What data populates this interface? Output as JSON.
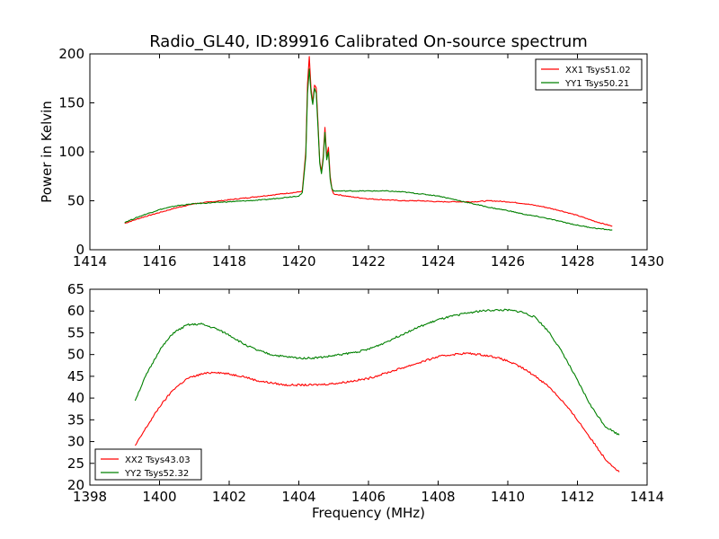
{
  "chart_data": [
    {
      "type": "line",
      "title": "Radio_GL40, ID:89916 Calibrated On-source spectrum",
      "xlabel": "",
      "ylabel": "Power in Kelvin",
      "xlim": [
        1414,
        1430
      ],
      "ylim": [
        0,
        200
      ],
      "xticks": [
        "1414",
        "1416",
        "1418",
        "1420",
        "1422",
        "1424",
        "1426",
        "1428",
        "1430"
      ],
      "yticks": [
        "0",
        "50",
        "100",
        "150",
        "200"
      ],
      "legend_position": "top-right",
      "series": [
        {
          "name": "XX1 Tsys51.02",
          "color": "#ff0000",
          "x": [
            1415,
            1415.5,
            1416,
            1416.5,
            1417,
            1417.5,
            1418,
            1418.5,
            1419,
            1419.5,
            1420,
            1420.1,
            1420.2,
            1420.25,
            1420.3,
            1420.35,
            1420.4,
            1420.45,
            1420.5,
            1420.55,
            1420.6,
            1420.65,
            1420.7,
            1420.75,
            1420.8,
            1420.85,
            1420.9,
            1420.95,
            1421,
            1421.5,
            1422,
            1422.5,
            1423,
            1423.5,
            1424,
            1424.5,
            1425,
            1425.5,
            1426,
            1426.5,
            1427,
            1427.5,
            1428,
            1428.5,
            1429
          ],
          "values": [
            27,
            33,
            38,
            43,
            47,
            49,
            51,
            53,
            55,
            57,
            59,
            60,
            100,
            170,
            197,
            165,
            150,
            168,
            165,
            130,
            90,
            80,
            95,
            125,
            95,
            105,
            75,
            62,
            57,
            54,
            52,
            51,
            50,
            50,
            49,
            49,
            49,
            50,
            49,
            47,
            44,
            40,
            35,
            29,
            24
          ]
        },
        {
          "name": "YY1 Tsys50.21",
          "color": "#008000",
          "x": [
            1415,
            1415.5,
            1416,
            1416.5,
            1417,
            1417.5,
            1418,
            1418.5,
            1419,
            1419.5,
            1420,
            1420.1,
            1420.2,
            1420.25,
            1420.3,
            1420.35,
            1420.4,
            1420.45,
            1420.5,
            1420.55,
            1420.6,
            1420.65,
            1420.7,
            1420.75,
            1420.8,
            1420.85,
            1420.9,
            1420.95,
            1421,
            1421.5,
            1422,
            1422.5,
            1423,
            1423.5,
            1424,
            1424.5,
            1425,
            1425.5,
            1426,
            1426.5,
            1427,
            1427.5,
            1428,
            1428.5,
            1429
          ],
          "values": [
            28,
            35,
            41,
            45,
            47,
            48,
            49,
            50,
            51,
            53,
            55,
            58,
            95,
            160,
            185,
            160,
            148,
            165,
            160,
            125,
            88,
            78,
            92,
            120,
            92,
            100,
            72,
            62,
            60,
            60,
            60,
            60,
            59,
            57,
            55,
            51,
            47,
            43,
            40,
            36,
            33,
            29,
            25,
            22,
            20
          ]
        }
      ]
    },
    {
      "type": "line",
      "title": "",
      "xlabel": "Frequency (MHz)",
      "ylabel": "",
      "xlim": [
        1398,
        1414
      ],
      "ylim": [
        20,
        65
      ],
      "xticks": [
        "1398",
        "1400",
        "1402",
        "1404",
        "1406",
        "1408",
        "1410",
        "1412",
        "1414"
      ],
      "yticks": [
        "20",
        "25",
        "30",
        "35",
        "40",
        "45",
        "50",
        "55",
        "60",
        "65"
      ],
      "legend_position": "bottom-left",
      "series": [
        {
          "name": "XX2 Tsys43.03",
          "color": "#ff0000",
          "x": [
            1399.3,
            1399.6,
            1400,
            1400.4,
            1400.8,
            1401.2,
            1401.6,
            1402,
            1402.4,
            1402.8,
            1403.2,
            1403.6,
            1404,
            1404.4,
            1404.8,
            1405.2,
            1405.6,
            1406,
            1406.4,
            1406.8,
            1407.2,
            1407.6,
            1408,
            1408.4,
            1408.8,
            1409.2,
            1409.6,
            1410,
            1410.4,
            1410.8,
            1411.2,
            1411.6,
            1412,
            1412.4,
            1412.8,
            1413.2
          ],
          "values": [
            29,
            33,
            38,
            42,
            44.5,
            45.5,
            46,
            45.5,
            45,
            44,
            43.5,
            43,
            43,
            43,
            43.2,
            43.5,
            44,
            44.5,
            45.5,
            46.5,
            47.5,
            48.5,
            49.5,
            50,
            50.3,
            50,
            49.5,
            48.5,
            47,
            45,
            42.5,
            39,
            35,
            30.5,
            26,
            23
          ]
        },
        {
          "name": "YY2 Tsys52.32",
          "color": "#008000",
          "x": [
            1399.3,
            1399.6,
            1400,
            1400.4,
            1400.8,
            1401.2,
            1401.6,
            1402,
            1402.4,
            1402.8,
            1403.2,
            1403.6,
            1404,
            1404.4,
            1404.8,
            1405.2,
            1405.6,
            1406,
            1406.4,
            1406.8,
            1407.2,
            1407.6,
            1408,
            1408.4,
            1408.8,
            1409.2,
            1409.6,
            1410,
            1410.4,
            1410.8,
            1411.2,
            1411.6,
            1412,
            1412.4,
            1412.8,
            1413.2
          ],
          "values": [
            39.5,
            45,
            51,
            55,
            56.8,
            57,
            56,
            54.5,
            52.5,
            51,
            50,
            49.5,
            49.2,
            49.2,
            49.5,
            50,
            50.5,
            51.2,
            52.5,
            54,
            55.5,
            56.8,
            58,
            58.8,
            59.5,
            60,
            60.2,
            60.2,
            59.8,
            58.5,
            55,
            50,
            44,
            38,
            33.5,
            31.5
          ]
        }
      ]
    }
  ]
}
